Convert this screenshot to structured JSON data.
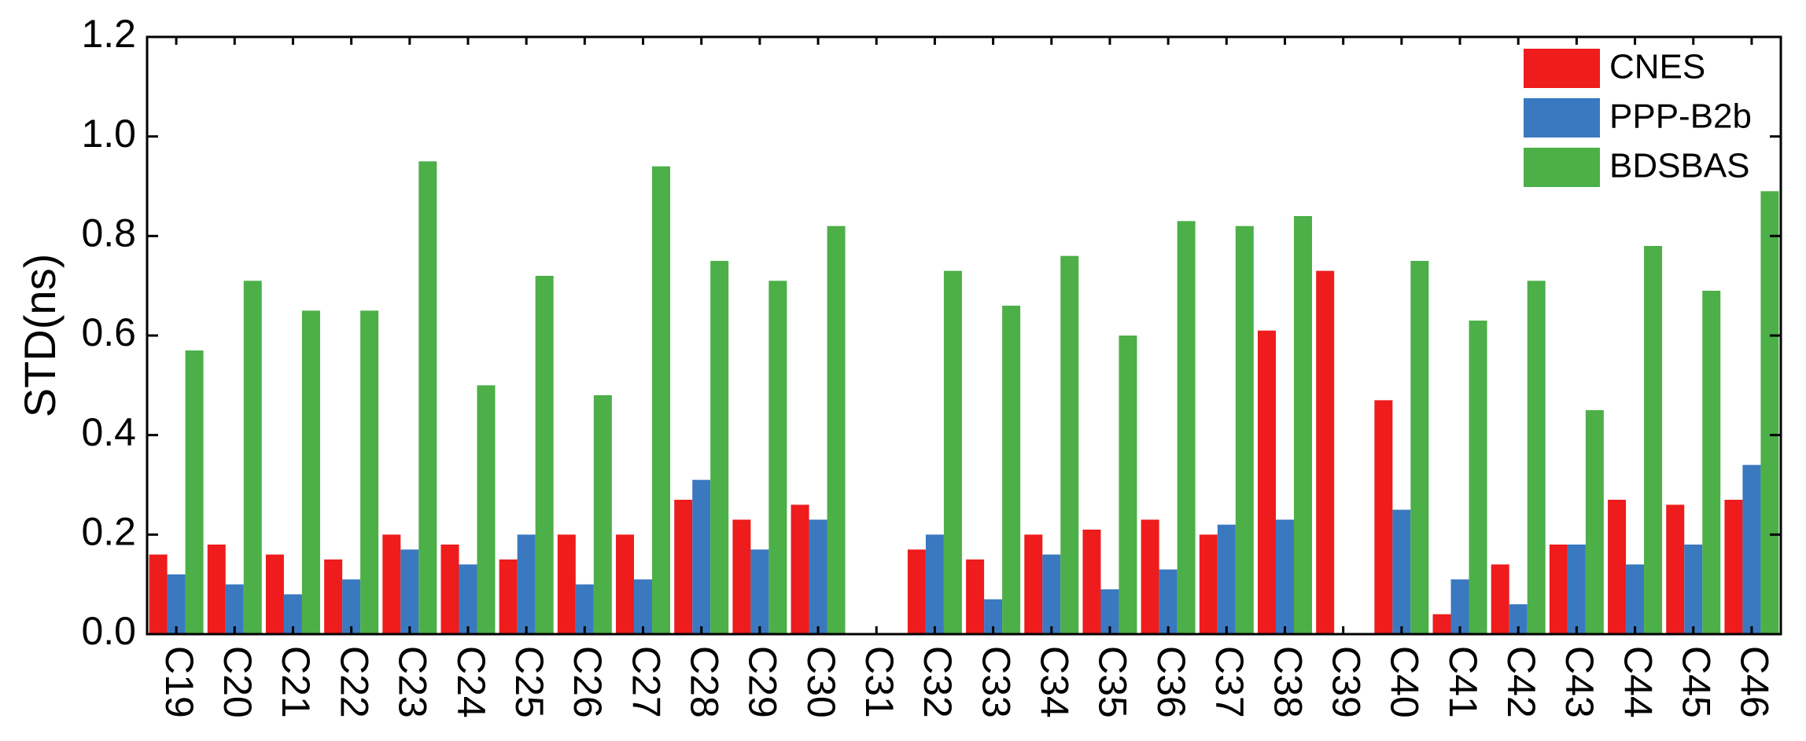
{
  "chart_data": {
    "type": "bar",
    "y_label": "STD(ns)",
    "categories": [
      "C19",
      "C20",
      "C21",
      "C22",
      "C23",
      "C24",
      "C25",
      "C26",
      "C27",
      "C28",
      "C29",
      "C30",
      "C31",
      "C32",
      "C33",
      "C34",
      "C35",
      "C36",
      "C37",
      "C38",
      "C39",
      "C40",
      "C41",
      "C42",
      "C43",
      "C44",
      "C45",
      "C46"
    ],
    "series": [
      {
        "name": "CNES",
        "color": "#ee1c1c",
        "values": [
          0.16,
          0.18,
          0.16,
          0.15,
          0.2,
          0.18,
          0.15,
          0.2,
          0.2,
          0.27,
          0.23,
          0.26,
          null,
          0.17,
          0.15,
          0.2,
          0.21,
          0.23,
          0.2,
          0.61,
          0.73,
          0.47,
          0.04,
          0.14,
          0.18,
          0.27,
          0.26,
          0.27
        ]
      },
      {
        "name": "PPP-B2b",
        "color": "#3a78c0",
        "values": [
          0.12,
          0.1,
          0.08,
          0.11,
          0.17,
          0.14,
          0.2,
          0.1,
          0.11,
          0.31,
          0.17,
          0.23,
          null,
          0.2,
          0.07,
          0.16,
          0.09,
          0.13,
          0.22,
          0.23,
          null,
          0.25,
          0.11,
          0.06,
          0.18,
          0.14,
          0.18,
          0.34
        ]
      },
      {
        "name": "BDSBAS",
        "color": "#4caf48",
        "values": [
          0.57,
          0.71,
          0.65,
          0.65,
          0.95,
          0.5,
          0.72,
          0.48,
          0.94,
          0.75,
          0.71,
          0.82,
          null,
          0.73,
          0.66,
          0.76,
          0.6,
          0.83,
          0.82,
          0.84,
          null,
          0.75,
          0.63,
          0.71,
          0.45,
          0.78,
          0.69,
          0.89
        ]
      }
    ],
    "ylim": [
      0,
      1.2
    ],
    "yticks": [
      {
        "value": 0,
        "label": "0.0"
      },
      {
        "value": 0.2,
        "label": "0.2"
      },
      {
        "value": 0.4,
        "label": "0.4"
      },
      {
        "value": 0.6,
        "label": "0.6"
      },
      {
        "value": 0.8,
        "label": "0.8"
      },
      {
        "value": 1.0,
        "label": "1.0"
      },
      {
        "value": 1.2,
        "label": "1.2"
      }
    ],
    "legend": "upper-right"
  }
}
